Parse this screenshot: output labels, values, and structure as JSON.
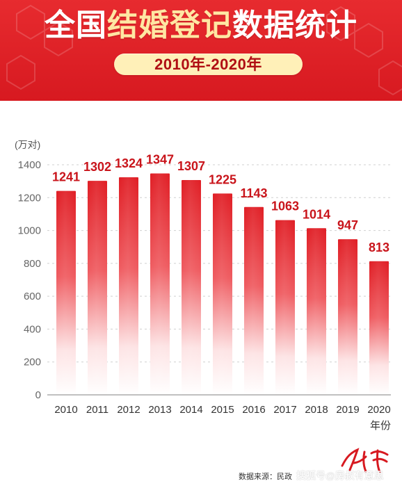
{
  "header": {
    "title_part1": "全国",
    "title_part2": "结婚登记",
    "title_part3": "数据统计",
    "subtitle": "2010年-2020年"
  },
  "chart_data": {
    "type": "bar",
    "title": "全国结婚登记数据统计",
    "subtitle": "2010年-2020年",
    "categories": [
      "2010",
      "2011",
      "2012",
      "2013",
      "2014",
      "2015",
      "2016",
      "2017",
      "2018",
      "2019",
      "2020"
    ],
    "values": [
      1241,
      1302,
      1324,
      1347,
      1307,
      1225,
      1143,
      1063,
      1014,
      947,
      813
    ],
    "ylabel": "(万对)",
    "xlabel": "年份",
    "ylim": [
      0,
      1400
    ],
    "yticks": [
      "0",
      "200",
      "400",
      "600",
      "800",
      "1000",
      "1200",
      "1400"
    ],
    "grid": true,
    "legend": "none",
    "bar_color_top": "#e01e25",
    "bar_color_bottom": "#ffffff"
  },
  "footer": {
    "source_text": "数据来源：民政",
    "watermark": "搜狐号@房叔有意思"
  },
  "colors": {
    "header_red": "#d71920",
    "title_yellow": "#ffe7a3",
    "pill_yellow": "#fff0b8",
    "label_red": "#c9141b",
    "axis_gray": "#777777"
  }
}
